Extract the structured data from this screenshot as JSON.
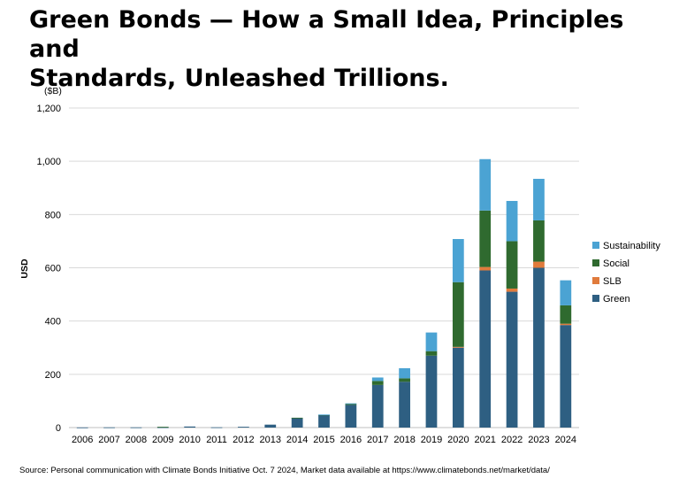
{
  "title_line1": "Green Bonds — How a Small Idea, Principles and",
  "title_line2": "Standards, Unleashed Trillions.",
  "source": "Source: Personal communication with Climate Bonds Initiative Oct. 7 2024,  Market data available at https://www.climatebonds.net/market/data/",
  "chart_data": {
    "type": "bar",
    "stacked": true,
    "unit_label": "($B)",
    "ylabel": "USD",
    "xlabel": "",
    "ylim": [
      0,
      1200
    ],
    "yticks": [
      0,
      200,
      400,
      600,
      800,
      1000,
      1200
    ],
    "ytick_labels": [
      "0",
      "200",
      "400",
      "600",
      "800",
      "1,000",
      "1,200"
    ],
    "grid": true,
    "legend_position": "right",
    "categories": [
      "2006",
      "2007",
      "2008",
      "2009",
      "2010",
      "2011",
      "2012",
      "2013",
      "2014",
      "2015",
      "2016",
      "2017",
      "2018",
      "2019",
      "2020",
      "2021",
      "2022",
      "2023",
      "2024"
    ],
    "series": [
      {
        "name": "Green",
        "color": "#2e5f82",
        "values": [
          0.5,
          0.8,
          0.8,
          1,
          4,
          1,
          3,
          11,
          36,
          47,
          85,
          160,
          172,
          270,
          300,
          590,
          510,
          600,
          385
        ]
      },
      {
        "name": "SLB",
        "color": "#e07b3c",
        "values": [
          0,
          0,
          0,
          0,
          0,
          0,
          0,
          0,
          0,
          0,
          0,
          0,
          0,
          0,
          3,
          13,
          12,
          23,
          5
        ]
      },
      {
        "name": "Social",
        "color": "#2f6a2f",
        "values": [
          0,
          0,
          0,
          2,
          0,
          0,
          0,
          0,
          1,
          1,
          4,
          15,
          13,
          17,
          243,
          212,
          178,
          155,
          69
        ]
      },
      {
        "name": "Sustainability",
        "color": "#4ba3d3",
        "values": [
          0,
          0,
          0,
          0,
          0,
          0,
          0,
          0,
          0,
          1,
          2,
          13,
          38,
          70,
          162,
          193,
          151,
          156,
          94
        ]
      }
    ],
    "legend_order": [
      "Sustainability",
      "Social",
      "SLB",
      "Green"
    ]
  }
}
